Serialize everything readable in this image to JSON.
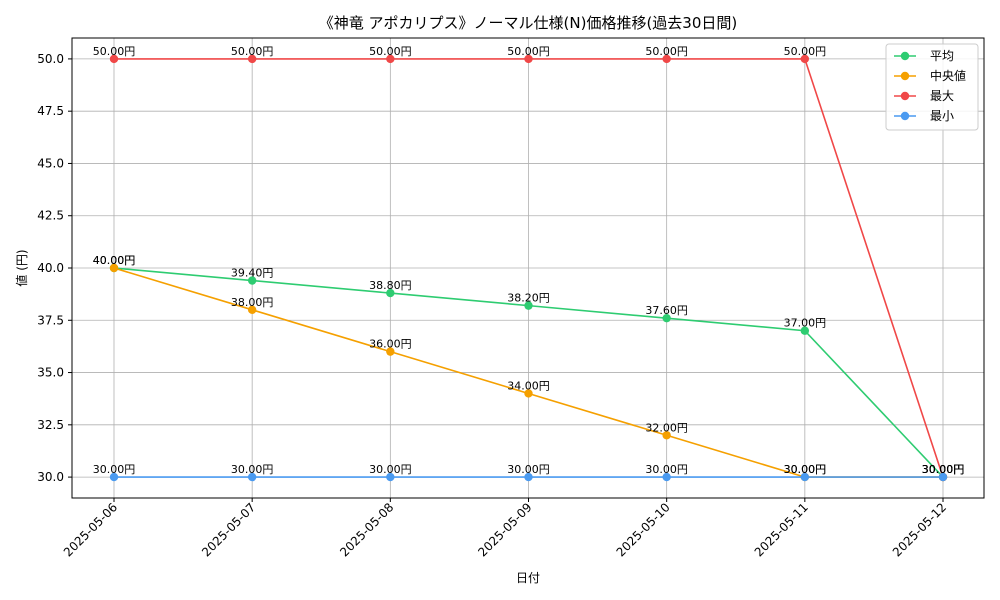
{
  "chart_data": {
    "type": "line",
    "title": "《神竜 アポカリプス》ノーマル仕様(N)価格推移(過去30日間)",
    "xlabel": "日付",
    "ylabel": "値 (円)",
    "categories": [
      "2025-05-06",
      "2025-05-07",
      "2025-05-08",
      "2025-05-09",
      "2025-05-10",
      "2025-05-11",
      "2025-05-12"
    ],
    "ylim": [
      29.0,
      51.0
    ],
    "yticks": [
      "30.0",
      "32.5",
      "35.0",
      "37.5",
      "40.0",
      "42.5",
      "45.0",
      "47.5",
      "50.0"
    ],
    "grid": true,
    "legend_position": "top-right",
    "series": [
      {
        "name": "平均",
        "color": "#2ecc71",
        "values": [
          40.0,
          39.4,
          38.8,
          38.2,
          37.6,
          37.0,
          30.0
        ],
        "labels": [
          "40.00円",
          "39.40円",
          "38.80円",
          "38.20円",
          "37.60円",
          "37.00円",
          "30.00円"
        ]
      },
      {
        "name": "中央値",
        "color": "#f5a000",
        "values": [
          40.0,
          38.0,
          36.0,
          34.0,
          32.0,
          30.0,
          30.0
        ],
        "labels": [
          "40.00円",
          "38.00円",
          "36.00円",
          "34.00円",
          "32.00円",
          "30.00円",
          "30.00円"
        ]
      },
      {
        "name": "最大",
        "color": "#f04848",
        "values": [
          50.0,
          50.0,
          50.0,
          50.0,
          50.0,
          50.0,
          30.0
        ],
        "labels": [
          "50.00円",
          "50.00円",
          "50.00円",
          "50.00円",
          "50.00円",
          "50.00円",
          "30.00円"
        ]
      },
      {
        "name": "最小",
        "color": "#4a9af0",
        "values": [
          30.0,
          30.0,
          30.0,
          30.0,
          30.0,
          30.0,
          30.0
        ],
        "labels": [
          "30.00円",
          "30.00円",
          "30.00円",
          "30.00円",
          "30.00円",
          "30.00円",
          "30.00円"
        ]
      }
    ]
  }
}
